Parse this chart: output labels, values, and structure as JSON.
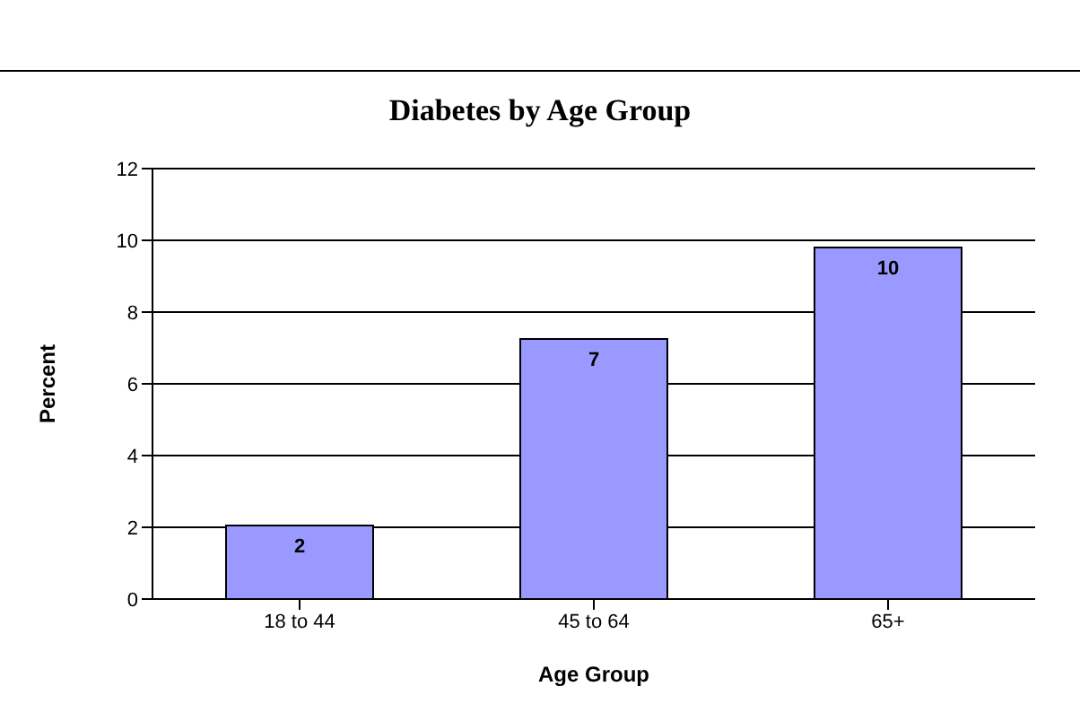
{
  "chart_data": {
    "type": "bar",
    "title": "Diabetes by Age Group",
    "xlabel": "Age Group",
    "ylabel": "Percent",
    "categories": [
      "18 to 44",
      "45 to 64",
      "65+"
    ],
    "values": [
      2.05,
      7.25,
      9.8
    ],
    "value_labels": [
      "2",
      "7",
      "10"
    ],
    "color": "#9999ff",
    "ylim": [
      0,
      12
    ],
    "yticks": [
      0,
      2,
      4,
      6,
      8,
      10,
      12
    ],
    "grid": "y",
    "legend": false
  }
}
